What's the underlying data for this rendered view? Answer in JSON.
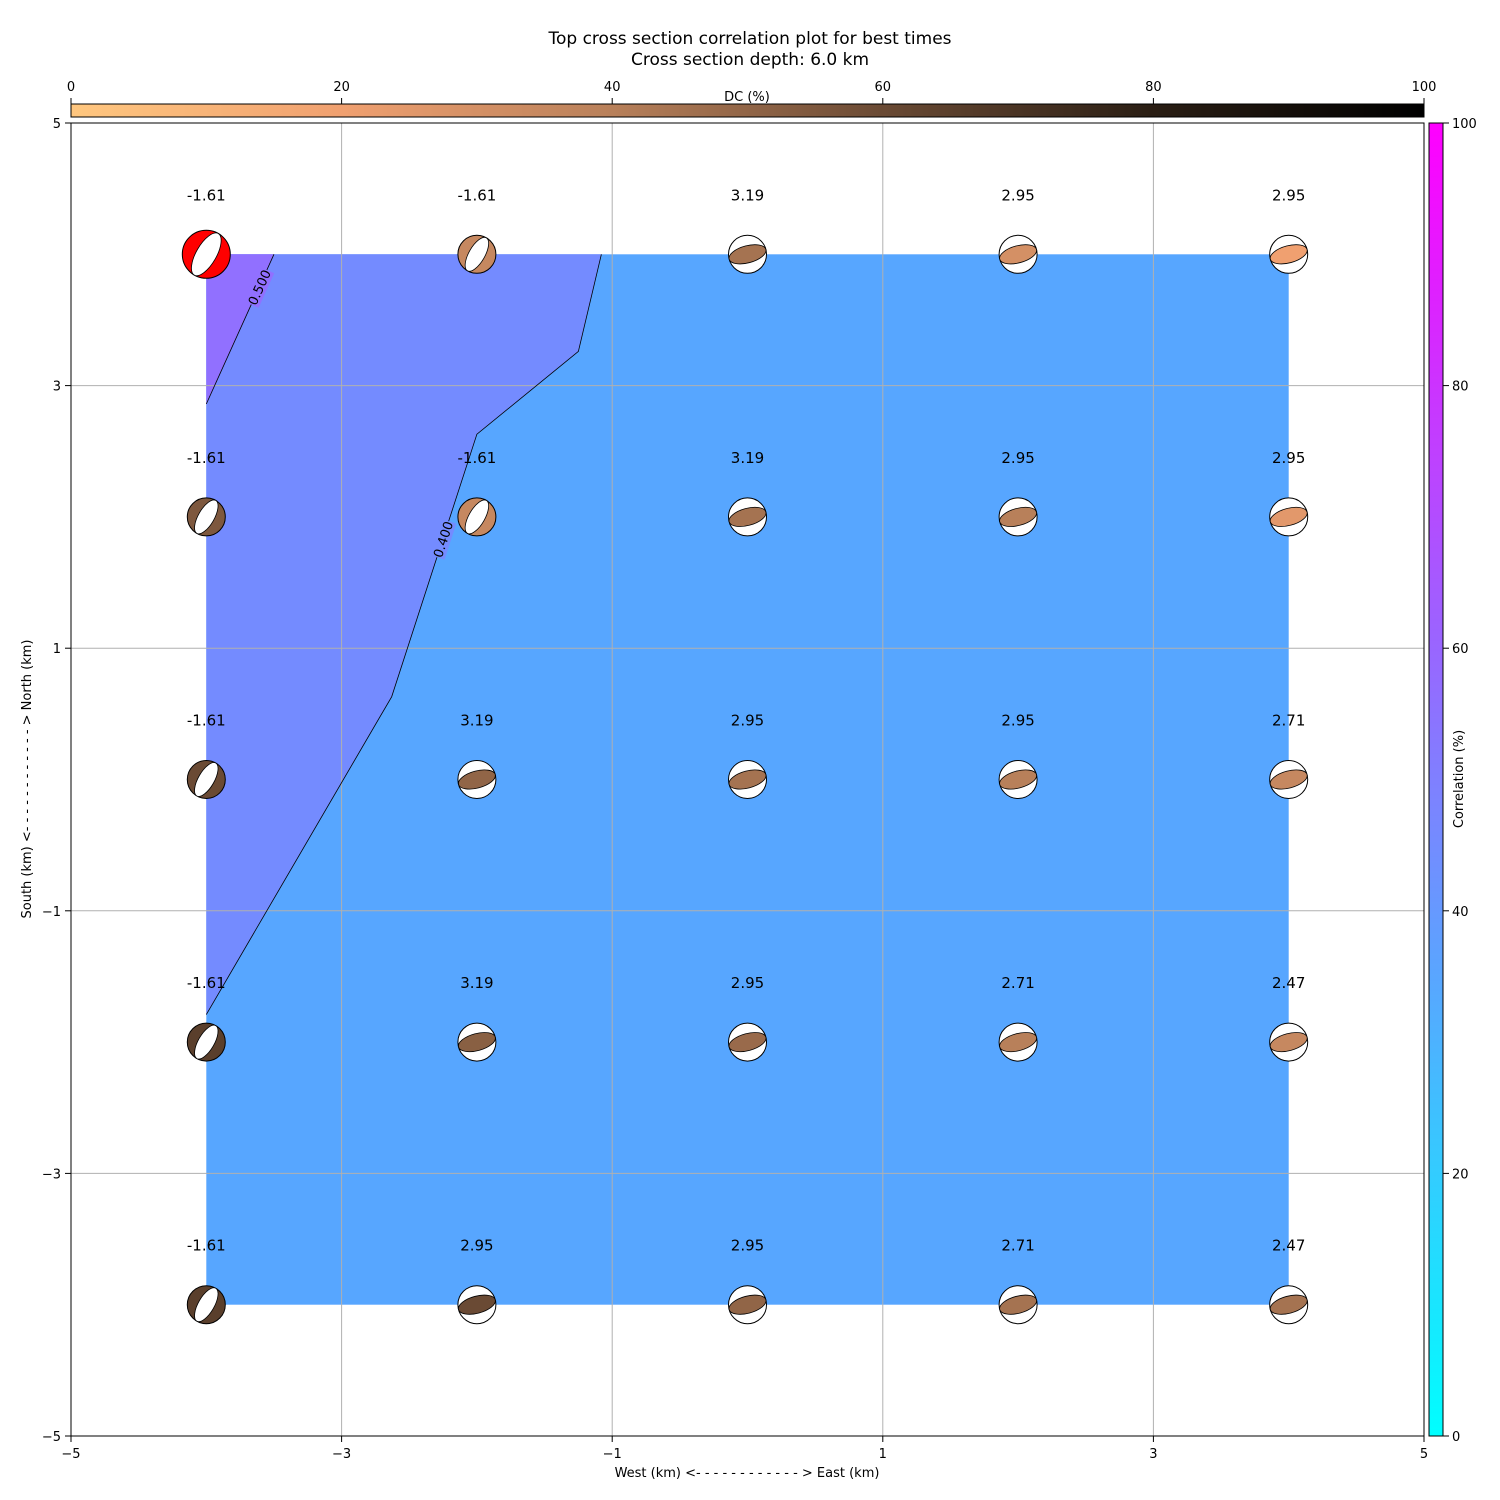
{
  "chart_data": {
    "type": "heatmap",
    "title": "Top cross section correlation plot for best times",
    "subtitle": "Cross section depth: 6.0 km",
    "xlabel": "West (km) <- - - - - - - - - - - - > East (km)",
    "ylabel": "South (km) <- - - - - - - - - - - - > North (km)",
    "xlim": [
      -5,
      5
    ],
    "ylim": [
      -5,
      5
    ],
    "x_ticks": [
      "−5",
      "−3",
      "−1",
      "1",
      "3",
      "5"
    ],
    "y_ticks": [
      "−5",
      "−3",
      "−1",
      "1",
      "3",
      "5"
    ],
    "grid": true,
    "dc_colorbar": {
      "label": "DC (%)",
      "range": [
        0,
        100
      ],
      "ticks": [
        "0",
        "20",
        "40",
        "60",
        "80",
        "100"
      ],
      "position": "top",
      "colors": [
        "#ffc77f",
        "#f0a070",
        "#b8805a",
        "#6a4a34",
        "#2a1e14",
        "#000000"
      ]
    },
    "correlation_colorbar": {
      "label": "Correlation (%)",
      "range": [
        0,
        100
      ],
      "ticks": [
        "0",
        "20",
        "40",
        "60",
        "80",
        "100"
      ],
      "position": "right",
      "colors": [
        "#00ffff",
        "#ff00ff"
      ]
    },
    "fill_colors": {
      "high": "#9170ff",
      "mid": "#748bff",
      "low": "#57a6ff",
      "best": "#ff0000"
    },
    "contour_levels": [
      {
        "label": "0.500",
        "polyline": [
          [
            -4,
            2.86
          ],
          [
            -3.5,
            4
          ]
        ]
      },
      {
        "label": "0.400",
        "polyline": [
          [
            -4,
            -1.79
          ],
          [
            -2.63,
            0.63
          ],
          [
            -2,
            2.63
          ],
          [
            -1.25,
            3.26
          ],
          [
            -1.08,
            4
          ]
        ]
      }
    ],
    "x": [
      -4,
      -2,
      0,
      2,
      4
    ],
    "y": [
      4,
      2,
      0,
      -2,
      -4
    ],
    "time_labels": [
      [
        "-1.61",
        "-1.61",
        "3.19",
        "2.95",
        "2.95"
      ],
      [
        "-1.61",
        "-1.61",
        "3.19",
        "2.95",
        "2.95"
      ],
      [
        "-1.61",
        "3.19",
        "2.95",
        "2.95",
        "2.71"
      ],
      [
        "-1.61",
        "3.19",
        "2.95",
        "2.71",
        "2.47"
      ],
      [
        "-1.61",
        "2.95",
        "2.95",
        "2.71",
        "2.47"
      ]
    ],
    "dc_percent": [
      [
        100,
        35,
        45,
        30,
        20
      ],
      [
        55,
        35,
        45,
        40,
        25
      ],
      [
        60,
        50,
        45,
        40,
        35
      ],
      [
        65,
        52,
        48,
        40,
        35
      ],
      [
        65,
        60,
        50,
        45,
        45
      ]
    ],
    "strike_angle_deg": [
      [
        -30,
        -30,
        75,
        75,
        75
      ],
      [
        -30,
        -30,
        75,
        75,
        75
      ],
      [
        -30,
        75,
        75,
        75,
        75
      ],
      [
        -30,
        75,
        75,
        75,
        75
      ],
      [
        -30,
        75,
        75,
        75,
        75
      ]
    ],
    "best_solution": {
      "x": -4,
      "y": 4,
      "color": "#ff0000"
    }
  }
}
